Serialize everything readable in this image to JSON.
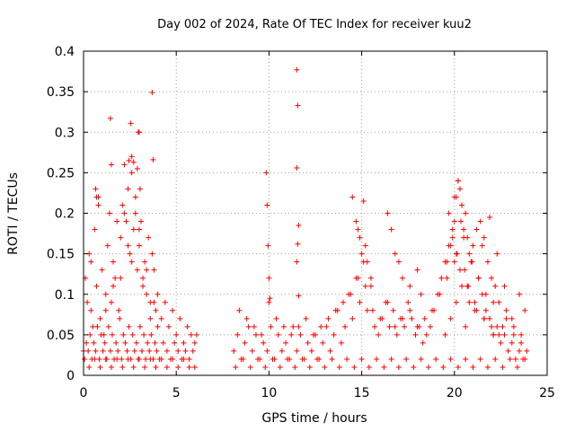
{
  "chart_data": {
    "type": "scatter",
    "title": "Day 002 of 2024, Rate Of TEC Index for receiver kuu2",
    "xlabel": "GPS time / hours",
    "ylabel": "ROTI / TECUs",
    "xlim": [
      0,
      25
    ],
    "ylim": [
      0,
      0.4
    ],
    "xticks": [
      0,
      5,
      10,
      15,
      20,
      25
    ],
    "yticks": [
      0,
      0.05,
      0.1,
      0.15,
      0.2,
      0.25,
      0.3,
      0.35,
      0.4
    ],
    "xtick_labels": [
      "0",
      "5",
      "10",
      "15",
      "20",
      "25"
    ],
    "ytick_labels": [
      "0",
      "0.05",
      "0.1",
      "0.15",
      "0.2",
      "0.25",
      "0.3",
      "0.35",
      "0.4"
    ],
    "grid": true,
    "marker": "+",
    "color": "#ff0000",
    "series": [
      {
        "x": [
          0.0,
          0.1,
          0.2,
          0.3,
          0.4,
          0.5,
          0.6,
          0.7,
          0.8,
          0.9,
          1.0,
          1.1,
          1.2,
          1.3,
          1.4,
          1.5,
          1.6,
          1.7,
          1.8,
          1.9,
          2.0,
          2.1,
          2.2,
          2.3,
          2.4,
          2.5,
          2.6,
          2.7,
          2.8,
          2.9,
          3.0,
          3.1,
          3.2,
          3.3,
          3.4,
          3.5,
          3.6,
          3.7,
          3.8,
          3.9,
          4.0,
          4.2,
          4.4,
          4.6,
          4.8,
          5.0,
          5.2,
          5.4,
          5.6,
          5.8,
          6.0,
          6.1,
          0.05,
          0.15,
          0.25,
          0.35,
          0.45,
          0.55,
          0.65,
          0.75,
          0.85,
          0.95,
          1.05,
          1.15,
          1.25,
          1.35,
          1.45,
          1.55,
          1.65,
          1.75,
          1.85,
          1.95,
          2.05,
          2.15,
          2.25,
          2.35,
          2.45,
          2.55,
          2.65,
          2.75,
          2.85,
          2.95,
          3.05,
          3.15,
          3.25,
          3.35,
          3.45,
          3.55,
          3.65,
          3.75,
          3.85,
          3.95,
          4.1,
          4.3,
          4.5,
          4.7,
          4.9,
          5.1,
          5.3,
          5.5,
          5.7,
          5.9,
          0.3,
          0.6,
          0.9,
          1.2,
          1.5,
          1.8,
          2.1,
          2.4,
          2.7,
          3.0,
          3.3,
          3.6,
          3.9,
          4.2,
          4.5,
          4.8,
          5.1,
          5.4,
          5.7,
          6.0,
          0.4,
          0.8,
          1.2,
          1.6,
          2.0,
          2.2,
          2.4,
          2.6,
          2.8,
          3.0,
          3.2,
          3.4,
          3.6,
          3.8,
          4.0,
          1.45,
          2.55,
          2.95,
          3.0,
          3.7,
          3.75,
          2.45,
          2.6,
          2.7,
          2.9,
          3.05,
          1.5,
          0.65,
          0.7,
          8.1,
          8.3,
          8.5,
          8.7,
          8.9,
          9.1,
          9.3,
          9.5,
          9.7,
          9.9,
          10.1,
          10.3,
          10.5,
          10.7,
          10.9,
          11.1,
          11.3,
          11.5,
          11.7,
          11.9,
          12.1,
          12.3,
          12.5,
          12.7,
          12.9,
          13.1,
          13.3,
          13.5,
          13.7,
          13.9,
          14.1,
          14.3,
          14.5,
          14.7,
          14.9,
          15.1,
          15.3,
          15.5,
          15.7,
          15.9,
          16.1,
          16.3,
          16.5,
          16.7,
          16.9,
          17.1,
          17.3,
          17.5,
          17.7,
          17.9,
          18.1,
          18.3,
          18.5,
          18.7,
          18.9,
          19.1,
          19.3,
          19.5,
          19.7,
          19.9,
          20.1,
          20.3,
          20.5,
          20.7,
          20.9,
          21.1,
          21.3,
          21.5,
          21.7,
          21.9,
          22.1,
          22.3,
          22.5,
          22.7,
          22.9,
          23.1,
          23.3,
          23.5,
          23.7,
          23.9,
          8.2,
          8.6,
          9.0,
          9.4,
          9.8,
          10.2,
          10.6,
          11.0,
          11.4,
          11.8,
          12.2,
          12.6,
          13.0,
          13.4,
          13.8,
          14.2,
          14.6,
          15.0,
          15.4,
          15.8,
          16.2,
          16.6,
          17.0,
          17.4,
          17.8,
          18.2,
          18.6,
          19.0,
          19.4,
          19.8,
          20.2,
          20.6,
          21.0,
          21.4,
          21.8,
          22.2,
          22.6,
          23.0,
          23.4,
          23.8,
          8.4,
          8.8,
          9.2,
          9.6,
          10.0,
          10.4,
          10.8,
          11.2,
          11.6,
          12.0,
          12.4,
          12.8,
          13.2,
          13.6,
          14.0,
          14.4,
          14.8,
          15.2,
          15.6,
          16.0,
          16.4,
          16.8,
          17.2,
          17.6,
          18.0,
          18.4,
          18.8,
          19.2,
          19.6,
          20.0,
          20.4,
          20.8,
          21.2,
          21.6,
          22.0,
          22.4,
          22.8,
          23.2,
          23.6,
          9.85,
          9.9,
          9.95,
          10.0,
          10.05,
          11.5,
          11.55,
          11.5,
          11.6,
          11.55,
          11.5,
          11.6,
          14.5,
          14.7,
          14.9,
          15.0,
          15.1,
          15.3,
          15.5,
          14.8,
          15.2,
          16.4,
          16.6,
          16.8,
          17.0,
          17.2,
          17.6,
          18.0,
          18.2,
          19.6,
          19.8,
          20.0,
          20.1,
          20.2,
          20.3,
          20.4,
          20.5,
          20.6,
          20.7,
          20.8,
          21.0,
          21.2,
          21.4,
          21.6,
          21.8,
          22.0,
          22.2,
          22.4,
          22.8,
          23.2,
          23.6,
          19.7,
          19.9,
          20.15,
          20.35,
          20.55,
          20.75,
          20.95,
          21.3,
          21.7,
          22.1,
          20.2,
          20.0,
          20.4,
          21.5,
          21.9,
          22.3,
          22.7,
          23.1,
          23.5,
          23.8,
          19.5,
          19.8,
          20.1,
          20.6,
          21.1,
          21.6,
          22.1,
          22.6
        ],
        "y": [
          0.03,
          0.12,
          0.09,
          0.15,
          0.08,
          0.06,
          0.18,
          0.11,
          0.22,
          0.07,
          0.13,
          0.05,
          0.1,
          0.16,
          0.2,
          0.09,
          0.14,
          0.12,
          0.19,
          0.08,
          0.17,
          0.21,
          0.26,
          0.19,
          0.23,
          0.15,
          0.25,
          0.18,
          0.2,
          0.13,
          0.16,
          0.19,
          0.12,
          0.14,
          0.1,
          0.17,
          0.09,
          0.15,
          0.13,
          0.08,
          0.1,
          0.07,
          0.09,
          0.06,
          0.08,
          0.05,
          0.07,
          0.04,
          0.06,
          0.05,
          0.04,
          0.05,
          0.02,
          0.04,
          0.03,
          0.05,
          0.02,
          0.04,
          0.03,
          0.06,
          0.02,
          0.05,
          0.03,
          0.04,
          0.02,
          0.06,
          0.03,
          0.05,
          0.02,
          0.04,
          0.03,
          0.07,
          0.02,
          0.05,
          0.04,
          0.03,
          0.06,
          0.02,
          0.05,
          0.03,
          0.04,
          0.02,
          0.06,
          0.03,
          0.05,
          0.02,
          0.04,
          0.03,
          0.05,
          0.02,
          0.04,
          0.03,
          0.02,
          0.04,
          0.03,
          0.02,
          0.04,
          0.03,
          0.02,
          0.03,
          0.02,
          0.03,
          0.01,
          0.02,
          0.01,
          0.02,
          0.01,
          0.02,
          0.01,
          0.02,
          0.01,
          0.02,
          0.01,
          0.02,
          0.01,
          0.02,
          0.01,
          0.02,
          0.01,
          0.02,
          0.01,
          0.01,
          0.14,
          0.21,
          0.08,
          0.11,
          0.12,
          0.2,
          0.16,
          0.14,
          0.22,
          0.18,
          0.11,
          0.13,
          0.07,
          0.09,
          0.06,
          0.317,
          0.311,
          0.3,
          0.3,
          0.349,
          0.266,
          0.265,
          0.27,
          0.263,
          0.255,
          0.23,
          0.26,
          0.23,
          0.22,
          0.03,
          0.05,
          0.02,
          0.04,
          0.06,
          0.03,
          0.05,
          0.02,
          0.04,
          0.03,
          0.06,
          0.02,
          0.05,
          0.03,
          0.04,
          0.02,
          0.06,
          0.03,
          0.05,
          0.02,
          0.04,
          0.03,
          0.05,
          0.02,
          0.04,
          0.06,
          0.03,
          0.05,
          0.08,
          0.04,
          0.06,
          0.1,
          0.07,
          0.12,
          0.09,
          0.14,
          0.08,
          0.11,
          0.06,
          0.05,
          0.07,
          0.09,
          0.06,
          0.08,
          0.05,
          0.07,
          0.06,
          0.09,
          0.07,
          0.05,
          0.06,
          0.04,
          0.05,
          0.06,
          0.08,
          0.1,
          0.12,
          0.14,
          0.16,
          0.18,
          0.15,
          0.13,
          0.17,
          0.11,
          0.14,
          0.09,
          0.12,
          0.1,
          0.08,
          0.07,
          0.05,
          0.06,
          0.04,
          0.05,
          0.03,
          0.04,
          0.02,
          0.03,
          0.02,
          0.03,
          0.01,
          0.02,
          0.01,
          0.02,
          0.01,
          0.02,
          0.01,
          0.02,
          0.01,
          0.02,
          0.01,
          0.02,
          0.01,
          0.02,
          0.01,
          0.02,
          0.01,
          0.02,
          0.01,
          0.02,
          0.01,
          0.02,
          0.01,
          0.02,
          0.01,
          0.02,
          0.01,
          0.02,
          0.01,
          0.02,
          0.01,
          0.02,
          0.01,
          0.02,
          0.01,
          0.02,
          0.01,
          0.02,
          0.01,
          0.02,
          0.08,
          0.07,
          0.06,
          0.05,
          0.09,
          0.07,
          0.06,
          0.05,
          0.06,
          0.07,
          0.05,
          0.06,
          0.07,
          0.08,
          0.09,
          0.1,
          0.12,
          0.11,
          0.08,
          0.07,
          0.09,
          0.06,
          0.07,
          0.08,
          0.06,
          0.07,
          0.08,
          0.1,
          0.12,
          0.14,
          0.11,
          0.09,
          0.08,
          0.07,
          0.06,
          0.05,
          0.07,
          0.05,
          0.04,
          0.25,
          0.21,
          0.16,
          0.12,
          0.095,
          0.377,
          0.333,
          0.256,
          0.185,
          0.162,
          0.14,
          0.098,
          0.22,
          0.19,
          0.17,
          0.15,
          0.215,
          0.14,
          0.12,
          0.18,
          0.16,
          0.2,
          0.18,
          0.15,
          0.14,
          0.12,
          0.11,
          0.13,
          0.1,
          0.14,
          0.16,
          0.19,
          0.22,
          0.24,
          0.23,
          0.21,
          0.18,
          0.2,
          0.17,
          0.15,
          0.16,
          0.18,
          0.19,
          0.17,
          0.14,
          0.12,
          0.11,
          0.09,
          0.08,
          0.06,
          0.05,
          0.2,
          0.17,
          0.15,
          0.19,
          0.13,
          0.11,
          0.14,
          0.12,
          0.1,
          0.09,
          0.24,
          0.22,
          0.21,
          0.16,
          0.195,
          0.15,
          0.11,
          0.07,
          0.1,
          0.08,
          0.05,
          0.07,
          0.09,
          0.06,
          0.08,
          0.07,
          0.05,
          0.06
        ]
      }
    ]
  }
}
